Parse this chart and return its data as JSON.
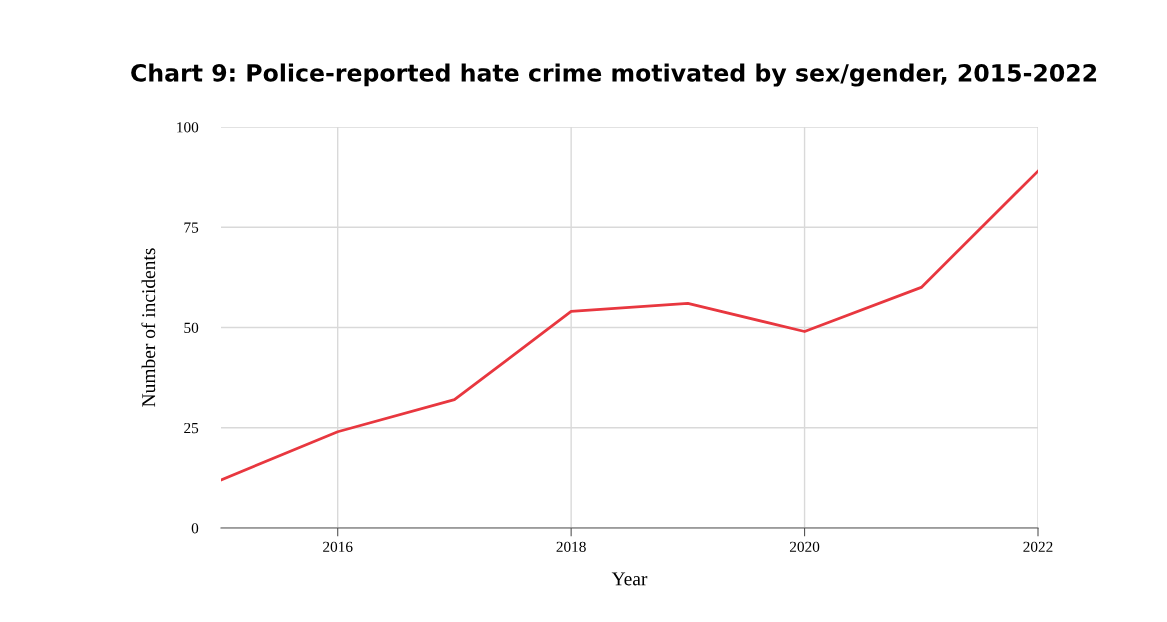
{
  "chart_data": {
    "type": "line",
    "title": "Chart 9: Police-reported hate crime motivated by sex/gender, 2015-2022",
    "xlabel": "Year",
    "ylabel": "Number of incidents",
    "x": [
      2015,
      2016,
      2017,
      2018,
      2019,
      2020,
      2021,
      2022
    ],
    "series": [
      {
        "color": "#e8373f",
        "values": [
          12,
          24,
          32,
          54,
          56,
          49,
          60,
          89
        ]
      }
    ],
    "xlim": [
      2015,
      2022
    ],
    "xticks": [
      2016,
      2018,
      2020,
      2022
    ],
    "ylim": [
      0,
      100
    ],
    "yticks": [
      0,
      25,
      50,
      75,
      100
    ],
    "grid": true,
    "marker": "none",
    "line_style": "solid",
    "legend": false
  }
}
